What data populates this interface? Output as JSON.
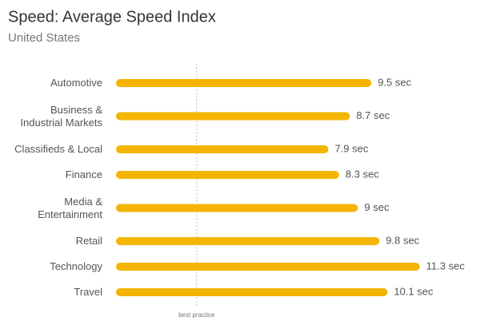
{
  "chart_data": {
    "type": "hbar",
    "title": "Speed: Average Speed Index",
    "subtitle": "United States",
    "categories": [
      "Automotive",
      "Business &\nIndustrial Markets",
      "Classifieds & Local",
      "Finance",
      "Media &\nEntertainment",
      "Retail",
      "Technology",
      "Travel"
    ],
    "values": [
      9.5,
      8.7,
      7.9,
      8.3,
      9,
      9.8,
      11.3,
      10.1
    ],
    "value_labels": [
      "9.5 sec",
      "8.7 sec",
      "7.9 sec",
      "8.3 sec",
      "9 sec",
      "9.8 sec",
      "11.3 sec",
      "10.1 sec"
    ],
    "color": "#f4b400",
    "xlim": [
      0,
      12
    ],
    "annotation": {
      "text": "best practice",
      "value": 3
    }
  }
}
